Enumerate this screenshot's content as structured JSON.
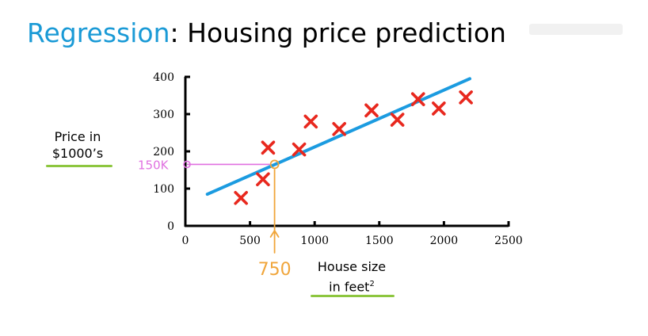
{
  "title": {
    "accent": "Regression",
    "rest": ": Housing price prediction"
  },
  "y_caption": {
    "line1": "Price in",
    "line2": "$1000’s"
  },
  "x_caption": {
    "line1": "House size",
    "line2": "in feet",
    "sup": "2"
  },
  "colors": {
    "accent": "#1a9ad6",
    "marker": "#e8281e",
    "fit_line": "#1b9be0",
    "underline": "#8dc63f",
    "annotation_price": "#e070e0",
    "annotation_size": "#f0a53a"
  },
  "chart_data": {
    "type": "scatter",
    "title": "",
    "xlabel": "House size in feet²",
    "ylabel": "Price in $1000’s",
    "xlim": [
      0,
      2500
    ],
    "ylim": [
      0,
      400
    ],
    "xticks": [
      0,
      500,
      1000,
      1500,
      2000,
      2500
    ],
    "yticks": [
      0,
      100,
      200,
      300,
      400
    ],
    "grid": false,
    "marker": "x",
    "points": [
      {
        "x": 430,
        "y": 75
      },
      {
        "x": 600,
        "y": 125
      },
      {
        "x": 640,
        "y": 210
      },
      {
        "x": 880,
        "y": 205
      },
      {
        "x": 970,
        "y": 280
      },
      {
        "x": 1190,
        "y": 260
      },
      {
        "x": 1440,
        "y": 310
      },
      {
        "x": 1640,
        "y": 285
      },
      {
        "x": 1800,
        "y": 340
      },
      {
        "x": 1960,
        "y": 315
      },
      {
        "x": 2170,
        "y": 345
      }
    ],
    "fit_line": {
      "x": [
        170,
        2200
      ],
      "y": [
        85,
        395
      ]
    },
    "annotations": [
      {
        "label": "150K",
        "axis": "y",
        "value": 165,
        "target_x": 690
      },
      {
        "label": "750",
        "axis": "x",
        "value": 690,
        "target_y": 165
      }
    ]
  }
}
